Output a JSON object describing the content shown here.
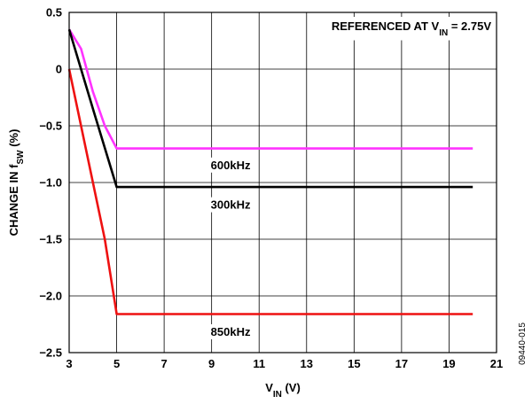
{
  "chart_data": {
    "type": "line",
    "xlabel": {
      "main": "V",
      "sub": "IN",
      "unit": " (V)"
    },
    "ylabel": {
      "pre": "CHANGE IN f",
      "sub": "SW",
      "unit": " (%)"
    },
    "annotation": {
      "pre": "REFERENCED AT V",
      "sub": "IN",
      "post": " = 2.75V"
    },
    "figure_id": "09440-015",
    "xlim": [
      3,
      21
    ],
    "ylim": [
      -2.5,
      0.5
    ],
    "xticks": [
      3,
      5,
      7,
      9,
      11,
      13,
      15,
      17,
      19,
      21
    ],
    "xtick_labels": [
      "3",
      "5",
      "7",
      "9",
      "11",
      "13",
      "15",
      "17",
      "19",
      "21"
    ],
    "yticks": [
      0.5,
      0,
      -0.5,
      -1.0,
      -1.5,
      -2.0,
      -2.5
    ],
    "ytick_labels": [
      "0.5",
      "0",
      "−0.5",
      "−1.0",
      "−1.5",
      "−2.0",
      "−2.5"
    ],
    "grid": true,
    "series": [
      {
        "name": "600kHz",
        "color": "#ff33ff",
        "x": [
          3.0,
          3.5,
          4.0,
          4.5,
          5.0,
          20.0
        ],
        "y": [
          0.35,
          0.18,
          -0.2,
          -0.5,
          -0.7,
          -0.7
        ],
        "label_at": [
          9.8,
          -0.85
        ]
      },
      {
        "name": "300kHz",
        "color": "#000000",
        "x": [
          3.0,
          4.0,
          5.0,
          20.0
        ],
        "y": [
          0.35,
          -0.35,
          -1.04,
          -1.04
        ],
        "label_at": [
          9.8,
          -1.2
        ]
      },
      {
        "name": "850kHz",
        "color": "#ee1111",
        "x": [
          3.0,
          4.5,
          5.0,
          20.0
        ],
        "y": [
          0.0,
          -1.5,
          -2.16,
          -2.16
        ],
        "label_at": [
          9.8,
          -2.32
        ]
      }
    ]
  }
}
